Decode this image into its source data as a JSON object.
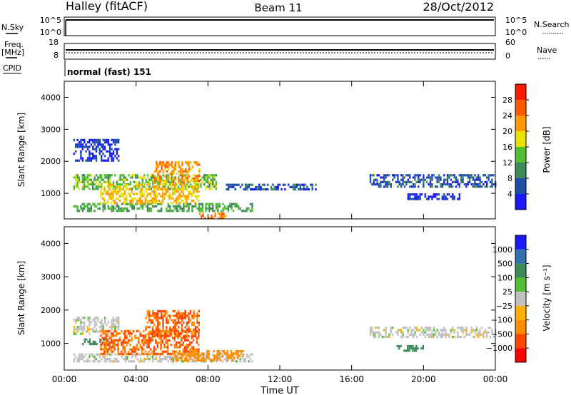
{
  "header": {
    "station": "Halley (fitACF)",
    "beam": "Beam 11",
    "date": "28/Oct/2012"
  },
  "strip_labels": {
    "nsky": "N.Sky",
    "nsearch": "N.Search",
    "freq": "Freq.",
    "freq_unit": "[MHz]",
    "nave": "Nave",
    "cpid": "CPID",
    "cpid_value": "normal (fast) 151"
  },
  "strip_ticks": {
    "nsky": [
      "10^5",
      "10^0"
    ],
    "nsearch": [
      "10^5",
      "10^0"
    ],
    "freq": [
      "18",
      "8"
    ],
    "nave": [
      "60",
      "0"
    ]
  },
  "x_axis": {
    "label": "Time UT",
    "ticks": [
      "00:00",
      "04:00",
      "08:00",
      "12:00",
      "16:00",
      "20:00",
      "00:00"
    ],
    "tick_hours": [
      0,
      4,
      8,
      12,
      16,
      20,
      24
    ]
  },
  "colors": {
    "power": [
      "#1a1aff",
      "#1f4fa8",
      "#3f8a5a",
      "#50c030",
      "#e8e000",
      "#ff9a00",
      "#ff5a00",
      "#ff1a00"
    ],
    "velocity": [
      "#1a1aff",
      "#3070b0",
      "#3f8a5a",
      "#50c030",
      "#c0c0c0",
      "#ffb000",
      "#ff8c00",
      "#ff4500",
      "#ff0000"
    ]
  },
  "chart_data": [
    {
      "type": "heatmap",
      "ylabel": "Slant Range [km]",
      "xlabel": "",
      "xlim": [
        0,
        24
      ],
      "ylim": [
        200,
        4500
      ],
      "yticks": [
        "1000",
        "2000",
        "3000",
        "4000"
      ],
      "ytick_values": [
        1000,
        2000,
        3000,
        4000
      ],
      "colorbar": {
        "label": "Power [dB]",
        "ticks": [
          "4",
          "8",
          "12",
          "16",
          "20",
          "24",
          "28"
        ],
        "tick_values": [
          4,
          8,
          12,
          16,
          20,
          24,
          28
        ],
        "range": [
          0,
          32
        ]
      },
      "regions": [
        {
          "t": [
            0.5,
            10.5
          ],
          "r": [
            450,
            700
          ],
          "value": 12
        },
        {
          "t": [
            0.5,
            8.5
          ],
          "r": [
            1150,
            1600
          ],
          "value": 14
        },
        {
          "t": [
            2.0,
            7.5
          ],
          "r": [
            700,
            1300
          ],
          "value": 20
        },
        {
          "t": [
            5.0,
            7.5
          ],
          "r": [
            1300,
            2000
          ],
          "value": 22
        },
        {
          "t": [
            7.5,
            9.0
          ],
          "r": [
            250,
            400
          ],
          "value": 24
        },
        {
          "t": [
            9.0,
            14.0
          ],
          "r": [
            1100,
            1300
          ],
          "value": 6
        },
        {
          "t": [
            17.0,
            24.0
          ],
          "r": [
            1200,
            1600
          ],
          "value": 6
        },
        {
          "t": [
            19.0,
            22.0
          ],
          "r": [
            800,
            1000
          ],
          "value": 4
        },
        {
          "t": [
            0.5,
            3.0
          ],
          "r": [
            2000,
            2700
          ],
          "value": 4
        }
      ]
    },
    {
      "type": "heatmap",
      "ylabel": "Slant Range [km]",
      "xlabel": "Time UT",
      "xlim": [
        0,
        24
      ],
      "ylim": [
        200,
        4500
      ],
      "yticks": [
        "1000",
        "2000",
        "3000",
        "4000"
      ],
      "ytick_values": [
        1000,
        2000,
        3000,
        4000
      ],
      "colorbar": {
        "label": "Velocity [m s⁻¹]",
        "ticks": [
          "1000",
          "500",
          "100",
          "25",
          "−25",
          "−100",
          "−500",
          "−1000"
        ],
        "tick_values": [
          1000,
          500,
          100,
          25,
          -25,
          -100,
          -500,
          -1000
        ]
      },
      "regions": [
        {
          "t": [
            0.5,
            10.5
          ],
          "r": [
            450,
            700
          ],
          "value": 0
        },
        {
          "t": [
            0.5,
            3.0
          ],
          "r": [
            1300,
            1800
          ],
          "value": 0
        },
        {
          "t": [
            1.0,
            2.5
          ],
          "r": [
            950,
            1150
          ],
          "value": 150
        },
        {
          "t": [
            2.0,
            7.5
          ],
          "r": [
            700,
            1400
          ],
          "value": -300
        },
        {
          "t": [
            4.5,
            7.5
          ],
          "r": [
            1200,
            2000
          ],
          "value": -300
        },
        {
          "t": [
            6.0,
            10.0
          ],
          "r": [
            500,
            800
          ],
          "value": -150
        },
        {
          "t": [
            17.0,
            24.0
          ],
          "r": [
            1200,
            1500
          ],
          "value": 0
        },
        {
          "t": [
            18.5,
            20.0
          ],
          "r": [
            800,
            950
          ],
          "value": 150
        }
      ]
    }
  ]
}
